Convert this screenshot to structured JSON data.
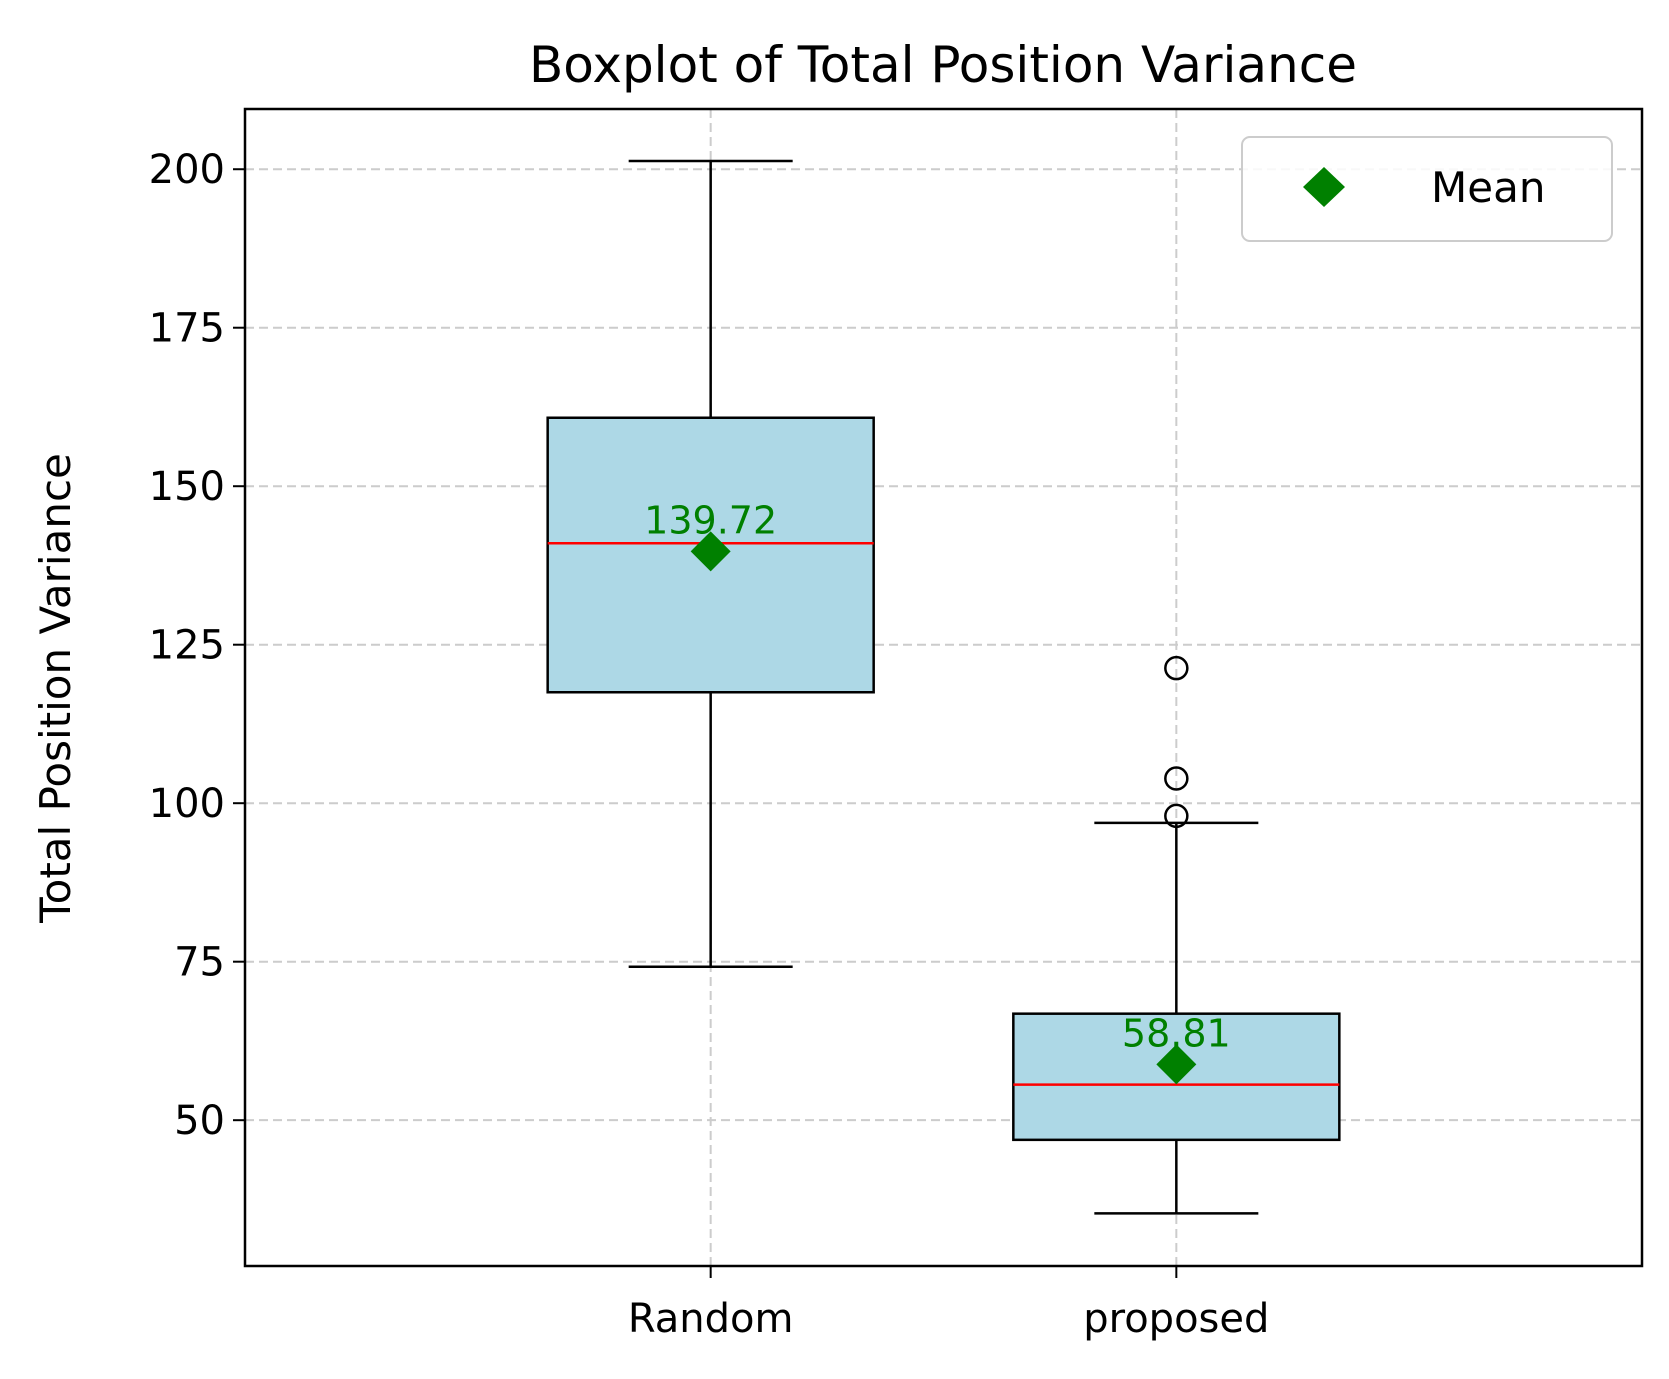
{
  "chart_data": {
    "type": "boxplot",
    "title": "Boxplot of Total Position Variance",
    "xlabel": "",
    "ylabel": "Total Position Variance",
    "categories": [
      "Random",
      "proposed"
    ],
    "ylim": [
      27,
      209.5
    ],
    "yticks": [
      50,
      75,
      100,
      125,
      150,
      175,
      200
    ],
    "grid": true,
    "legend": {
      "label": "Mean",
      "placement": "top-right"
    },
    "series": [
      {
        "category": "Random",
        "whisker_low": 74.2,
        "q1": 117.5,
        "median": 141.0,
        "q3": 160.8,
        "whisker_high": 201.3,
        "mean": 139.72,
        "mean_label": "139.72",
        "outliers": []
      },
      {
        "category": "proposed",
        "whisker_low": 35.3,
        "q1": 46.9,
        "median": 55.6,
        "q3": 66.8,
        "whisker_high": 96.9,
        "mean": 58.81,
        "mean_label": "58.81",
        "outliers": [
          98.0,
          103.9,
          121.3
        ]
      }
    ],
    "colors": {
      "box_fill": "#add8e6",
      "median": "#ff0000",
      "mean": "#008000",
      "grid": "#cccccc",
      "axes": "#000000"
    }
  }
}
